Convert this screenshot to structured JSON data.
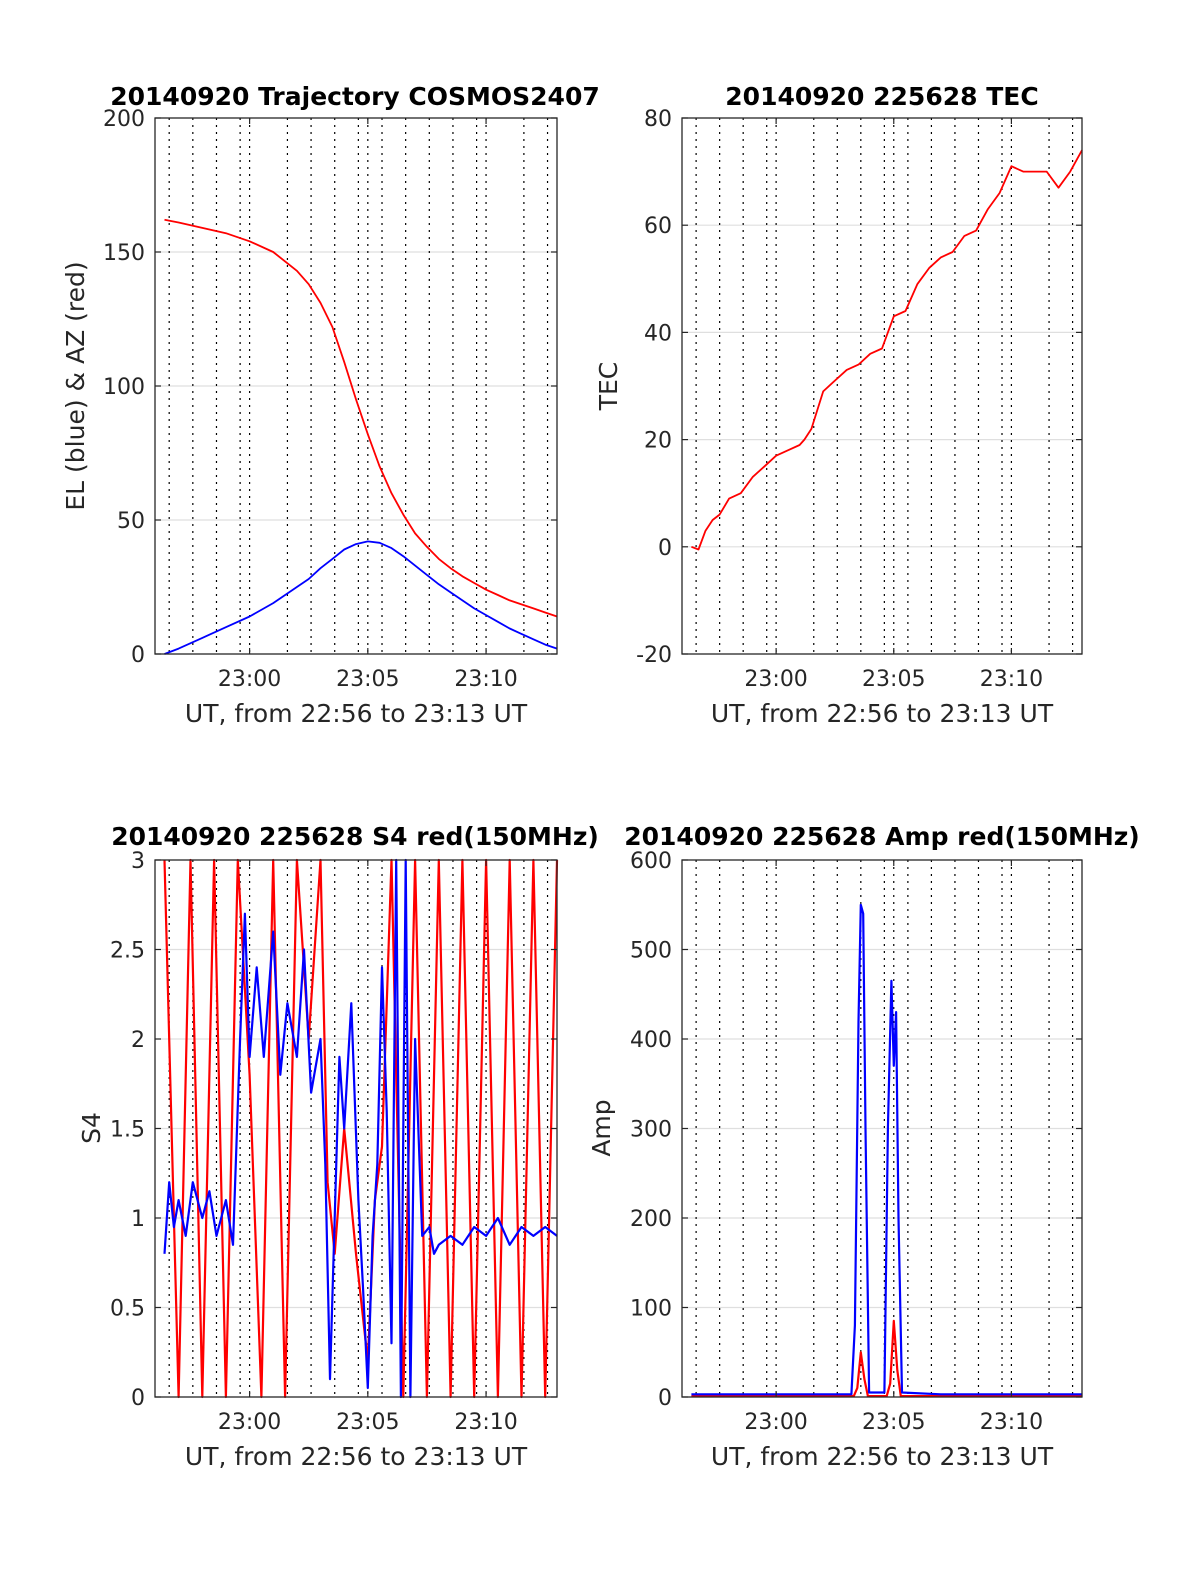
{
  "chart_data": [
    {
      "id": "trajectory",
      "type": "line",
      "title": "20140920 Trajectory COSMOS2407",
      "xlabel": "UT, from 22:56 to 23:13 UT",
      "ylabel": "EL (blue) & AZ (red)",
      "xlim": [
        1376,
        1393
      ],
      "ylim": [
        0,
        200
      ],
      "xticks": [
        1380,
        1385,
        1390
      ],
      "xtick_labels": [
        "23:00",
        "23:05",
        "23:10"
      ],
      "yticks": [
        0,
        50,
        100,
        150,
        200
      ],
      "ytick_labels": [
        "0",
        "50",
        "100",
        "150",
        "200"
      ],
      "grid": true,
      "colors": {
        "red": "#ff0000",
        "blue": "#0000ff"
      },
      "series": [
        {
          "color": "#ff0000",
          "x": [
            1376.4,
            1377,
            1378,
            1379,
            1380,
            1381,
            1382,
            1382.5,
            1383,
            1383.5,
            1384,
            1384.5,
            1385,
            1385.5,
            1386,
            1386.5,
            1387,
            1387.5,
            1388,
            1388.5,
            1389,
            1389.5,
            1390,
            1390.5,
            1391,
            1391.5,
            1392,
            1392.5,
            1393
          ],
          "y": [
            162,
            161,
            159,
            157,
            154,
            150,
            143,
            138,
            131,
            122,
            109,
            95,
            82,
            70,
            60,
            52,
            45,
            40,
            35.5,
            32,
            29,
            26.5,
            24,
            22,
            20,
            18.5,
            17,
            15.5,
            14
          ]
        },
        {
          "color": "#0000ff",
          "x": [
            1376.4,
            1377,
            1378,
            1379,
            1380,
            1381,
            1382,
            1382.5,
            1383,
            1383.5,
            1384,
            1384.5,
            1385,
            1385.5,
            1386,
            1386.5,
            1387,
            1387.5,
            1388,
            1388.5,
            1389,
            1389.5,
            1390,
            1390.5,
            1391,
            1391.5,
            1392,
            1392.5,
            1393
          ],
          "y": [
            0,
            2,
            6,
            10,
            14,
            19,
            25,
            28,
            32,
            35.5,
            39,
            41,
            42,
            41.5,
            39.5,
            36.5,
            33,
            29.5,
            26,
            23,
            20,
            17,
            14.5,
            12,
            9.5,
            7.5,
            5.5,
            3.5,
            2
          ]
        }
      ]
    },
    {
      "id": "tec",
      "type": "line",
      "title": "20140920 225628 TEC",
      "xlabel": "UT, from 22:56 to 23:13 UT",
      "ylabel": "TEC",
      "xlim": [
        1376,
        1393
      ],
      "ylim": [
        -20,
        80
      ],
      "xticks": [
        1380,
        1385,
        1390
      ],
      "xtick_labels": [
        "23:00",
        "23:05",
        "23:10"
      ],
      "yticks": [
        -20,
        0,
        20,
        40,
        60,
        80
      ],
      "ytick_labels": [
        "-20",
        "0",
        "20",
        "40",
        "60",
        "80"
      ],
      "grid": true,
      "series": [
        {
          "color": "#ff0000",
          "x": [
            1376.4,
            1376.7,
            1377,
            1377.3,
            1377.6,
            1378,
            1378.5,
            1379,
            1379.5,
            1380,
            1380.5,
            1381,
            1381.2,
            1381.5,
            1382,
            1382.5,
            1383,
            1383.5,
            1384,
            1384.5,
            1385,
            1385.5,
            1386,
            1386.5,
            1387,
            1387.5,
            1388,
            1388.5,
            1389,
            1389.5,
            1390,
            1390.5,
            1391,
            1391.5,
            1392,
            1392.5,
            1393
          ],
          "y": [
            0,
            -0.5,
            3,
            5,
            6,
            9,
            10,
            13,
            15,
            17,
            18,
            19,
            20,
            22,
            29,
            31,
            33,
            34,
            36,
            37,
            43,
            44,
            49,
            52,
            54,
            55,
            58,
            59,
            63,
            66,
            71,
            70,
            70,
            70,
            67,
            70,
            74
          ]
        }
      ]
    },
    {
      "id": "s4",
      "type": "line",
      "title": "20140920 225628 S4 red(150MHz)",
      "xlabel": "UT, from 22:56 to 23:13 UT",
      "ylabel": "S4",
      "xlim": [
        1376,
        1393
      ],
      "ylim": [
        0,
        3
      ],
      "xticks": [
        1380,
        1385,
        1390
      ],
      "xtick_labels": [
        "23:00",
        "23:05",
        "23:10"
      ],
      "yticks": [
        0,
        0.5,
        1,
        1.5,
        2,
        2.5,
        3
      ],
      "ytick_labels": [
        "0",
        "0.5",
        "1",
        "1.5",
        "2",
        "2.5",
        "3"
      ],
      "grid": true,
      "series": [
        {
          "color": "#ff0000",
          "x": [
            1376.4,
            1377,
            1377.5,
            1378,
            1378.5,
            1379,
            1379.5,
            1380,
            1380.5,
            1381,
            1381.5,
            1382,
            1382.5,
            1383,
            1383.3,
            1383.6,
            1384,
            1384.5,
            1385,
            1385.3,
            1385.6,
            1386,
            1386.5,
            1387,
            1387.5,
            1388,
            1388.5,
            1389,
            1389.5,
            1390,
            1390.5,
            1391,
            1391.5,
            1392,
            1392.5,
            1393
          ],
          "y": [
            3,
            0,
            3,
            0,
            3,
            0,
            3,
            1.8,
            0,
            3,
            0,
            3,
            2,
            3,
            1.2,
            0.8,
            1.5,
            0.8,
            0.2,
            1.1,
            1.4,
            3,
            0,
            3,
            0,
            3,
            0,
            3,
            0,
            3,
            0,
            3,
            0,
            3,
            0,
            3
          ]
        },
        {
          "color": "#0000ff",
          "x": [
            1376.4,
            1376.6,
            1376.8,
            1377,
            1377.3,
            1377.6,
            1378,
            1378.3,
            1378.6,
            1379,
            1379.3,
            1379.6,
            1379.8,
            1380,
            1380.3,
            1380.6,
            1381,
            1381.3,
            1381.6,
            1382,
            1382.3,
            1382.6,
            1383,
            1383.2,
            1383.4,
            1383.6,
            1383.8,
            1384,
            1384.3,
            1384.6,
            1384.8,
            1385,
            1385.2,
            1385.4,
            1385.6,
            1385.8,
            1386,
            1386.2,
            1386.4,
            1386.6,
            1386.8,
            1387,
            1387.3,
            1387.6,
            1387.8,
            1388,
            1388.5,
            1389,
            1389.5,
            1390,
            1390.5,
            1391,
            1391.5,
            1392,
            1392.5,
            1393
          ],
          "y": [
            0.8,
            1.2,
            0.95,
            1.1,
            0.9,
            1.2,
            1.0,
            1.15,
            0.9,
            1.1,
            0.85,
            2.0,
            2.7,
            1.9,
            2.4,
            1.9,
            2.6,
            1.8,
            2.2,
            1.9,
            2.5,
            1.7,
            2.0,
            1.3,
            0.1,
            1.0,
            1.9,
            1.5,
            2.2,
            1.1,
            0.6,
            0.05,
            0.9,
            1.3,
            2.4,
            1.6,
            0.3,
            3.0,
            0.0,
            3.0,
            0.0,
            2.0,
            0.9,
            0.95,
            0.8,
            0.85,
            0.9,
            0.85,
            0.95,
            0.9,
            1.0,
            0.85,
            0.95,
            0.9,
            0.95,
            0.9
          ]
        }
      ]
    },
    {
      "id": "amp",
      "type": "line",
      "title": "20140920 225628 Amp red(150MHz)",
      "xlabel": "UT, from 22:56 to 23:13 UT",
      "ylabel": "Amp",
      "xlim": [
        1376,
        1393
      ],
      "ylim": [
        0,
        600
      ],
      "xticks": [
        1380,
        1385,
        1390
      ],
      "xtick_labels": [
        "23:00",
        "23:05",
        "23:10"
      ],
      "yticks": [
        0,
        100,
        200,
        300,
        400,
        500,
        600
      ],
      "ytick_labels": [
        "0",
        "100",
        "200",
        "300",
        "400",
        "500",
        "600"
      ],
      "grid": true,
      "series": [
        {
          "color": "#ff0000",
          "x": [
            1376.4,
            1383.3,
            1383.45,
            1383.6,
            1383.75,
            1383.9,
            1384.7,
            1384.85,
            1385.0,
            1385.15,
            1385.3,
            1393
          ],
          "y": [
            1,
            1,
            10,
            50,
            20,
            1,
            1,
            15,
            85,
            30,
            1,
            1
          ]
        },
        {
          "color": "#0000ff",
          "x": [
            1376.4,
            1378,
            1380,
            1382,
            1383.2,
            1383.35,
            1383.5,
            1383.6,
            1383.7,
            1383.8,
            1383.95,
            1384.6,
            1384.75,
            1384.9,
            1385.0,
            1385.1,
            1385.2,
            1385.35,
            1387,
            1389,
            1391,
            1393
          ],
          "y": [
            3,
            3,
            3,
            3,
            3,
            80,
            420,
            550,
            540,
            300,
            5,
            5,
            300,
            465,
            370,
            430,
            200,
            5,
            3,
            3,
            3,
            3
          ]
        }
      ]
    }
  ]
}
